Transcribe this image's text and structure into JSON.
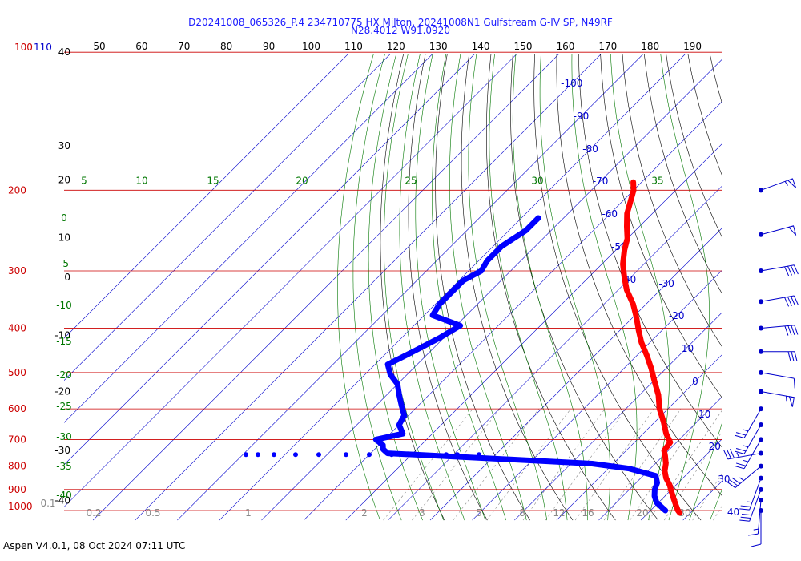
{
  "title_line1": "D20241008_065326_P.4 234710775 HX Milton, 20241008N1 Gulfstream G-IV SP, N49RF",
  "title_line2": "N28.4012 W91.0920",
  "footer": "Aspen V4.0.1, 08 Oct 2024  07:11 UTC",
  "colors": {
    "isobar": "#cc0000",
    "isotherm": "#0000cc",
    "dry_adiabat": "#000000",
    "moist_adiabat": "#007700",
    "mixing_ratio": "#888888",
    "temperature": "#ff0000",
    "dewpoint": "#0000ff",
    "wind": "#0000cc",
    "height_km": "#000000"
  },
  "chart_data": {
    "type": "skew-t log-p",
    "grid": true,
    "pressure_levels": [
      {
        "p": 100,
        "label": "100"
      },
      {
        "p": 110,
        "label": "110"
      },
      {
        "p": 200,
        "label": "200"
      },
      {
        "p": 300,
        "label": "300"
      },
      {
        "p": 400,
        "label": "400"
      },
      {
        "p": 500,
        "label": "500"
      },
      {
        "p": 600,
        "label": "600"
      },
      {
        "p": 700,
        "label": "700"
      },
      {
        "p": 800,
        "label": "800"
      },
      {
        "p": 900,
        "label": "900"
      },
      {
        "p": 1000,
        "label": "1000"
      }
    ],
    "isotherm_labels": [
      {
        "t": -100,
        "label": "-100"
      },
      {
        "t": -90,
        "label": "-90"
      },
      {
        "t": -80,
        "label": "-80"
      },
      {
        "t": -70,
        "label": "-70"
      },
      {
        "t": -60,
        "label": "-60"
      },
      {
        "t": -50,
        "label": "-50"
      },
      {
        "t": -40,
        "label": "-40"
      },
      {
        "t": -30,
        "label": "-30"
      },
      {
        "t": -20,
        "label": "-20"
      },
      {
        "t": -10,
        "label": "-10"
      },
      {
        "t": 0,
        "label": "0"
      },
      {
        "t": 10,
        "label": "10"
      },
      {
        "t": 20,
        "label": "20"
      },
      {
        "t": 30,
        "label": "30"
      },
      {
        "t": 40,
        "label": "40"
      }
    ],
    "dry_adiabat_top_labels": [
      "50",
      "60",
      "70",
      "80",
      "90",
      "100",
      "110",
      "120",
      "130",
      "140",
      "150",
      "160",
      "170",
      "180",
      "190"
    ],
    "moist_adiabat_labels_200": [
      {
        "theta_w": 5,
        "label": "5"
      },
      {
        "theta_w": 10,
        "label": "10"
      },
      {
        "theta_w": 15,
        "label": "15"
      },
      {
        "theta_w": 20,
        "label": "20"
      },
      {
        "theta_w": 25,
        "label": "25"
      },
      {
        "theta_w": 30,
        "label": "30"
      },
      {
        "theta_w": 35,
        "label": "35"
      }
    ],
    "moist_adiabat_labels_left": [
      "0",
      "-5",
      "-10",
      "-15",
      "-20",
      "-25",
      "-30",
      "-35",
      "-40"
    ],
    "mixing_ratio_labels": [
      {
        "w": 0.1,
        "label": "0.1"
      },
      {
        "w": 0.2,
        "label": "0.2"
      },
      {
        "w": 0.5,
        "label": "0.5"
      },
      {
        "w": 1,
        "label": "1"
      },
      {
        "w": 2,
        "label": "2"
      },
      {
        "w": 3,
        "label": "3"
      },
      {
        "w": 5,
        "label": "5"
      },
      {
        "w": 8,
        "label": "8"
      },
      {
        "w": 12,
        "label": "12"
      },
      {
        "w": 16,
        "label": "16"
      },
      {
        "w": 20,
        "label": "20"
      },
      {
        "w": 30,
        "label": "30"
      },
      {
        "w": 40,
        "label": "40"
      }
    ],
    "height_km_labels": [
      {
        "p": 100,
        "label": "40"
      },
      {
        "p": 160,
        "label": "30"
      },
      {
        "p": 190,
        "label": "20"
      },
      {
        "p": 254,
        "label": "10"
      },
      {
        "p": 310,
        "label": "0"
      },
      {
        "p": 415,
        "label": "-10"
      },
      {
        "p": 550,
        "label": "-20"
      },
      {
        "p": 740,
        "label": "-30"
      },
      {
        "p": 950,
        "label": "-40"
      }
    ],
    "temperature_profile": [
      {
        "p": 192,
        "t": -62
      },
      {
        "p": 200,
        "t": -60
      },
      {
        "p": 212,
        "t": -58
      },
      {
        "p": 225,
        "t": -56
      },
      {
        "p": 240,
        "t": -53
      },
      {
        "p": 255,
        "t": -50
      },
      {
        "p": 270,
        "t": -48
      },
      {
        "p": 290,
        "t": -45
      },
      {
        "p": 310,
        "t": -41.5
      },
      {
        "p": 330,
        "t": -38
      },
      {
        "p": 355,
        "t": -33
      },
      {
        "p": 380,
        "t": -29
      },
      {
        "p": 405,
        "t": -25.5
      },
      {
        "p": 430,
        "t": -22
      },
      {
        "p": 460,
        "t": -17.5
      },
      {
        "p": 490,
        "t": -13.5
      },
      {
        "p": 520,
        "t": -10
      },
      {
        "p": 560,
        "t": -5.5
      },
      {
        "p": 600,
        "t": -2
      },
      {
        "p": 640,
        "t": 2
      },
      {
        "p": 680,
        "t": 5.5
      },
      {
        "p": 710,
        "t": 8.5
      },
      {
        "p": 740,
        "t": 9
      },
      {
        "p": 760,
        "t": 10.5
      },
      {
        "p": 790,
        "t": 12.5
      },
      {
        "p": 820,
        "t": 14
      },
      {
        "p": 850,
        "t": 16
      },
      {
        "p": 880,
        "t": 18.5
      },
      {
        "p": 910,
        "t": 20.5
      },
      {
        "p": 940,
        "t": 22.5
      },
      {
        "p": 970,
        "t": 24.5
      },
      {
        "p": 1000,
        "t": 26.5
      },
      {
        "p": 1012,
        "t": 27.5
      }
    ],
    "dewpoint_profile": [
      {
        "p": 230,
        "td": -76
      },
      {
        "p": 245,
        "td": -76
      },
      {
        "p": 265,
        "td": -78
      },
      {
        "p": 285,
        "td": -78
      },
      {
        "p": 300,
        "td": -77
      },
      {
        "p": 315,
        "td": -79
      },
      {
        "p": 335,
        "td": -79
      },
      {
        "p": 355,
        "td": -79
      },
      {
        "p": 375,
        "td": -78
      },
      {
        "p": 395,
        "td": -69
      },
      {
        "p": 420,
        "td": -71
      },
      {
        "p": 450,
        "td": -74
      },
      {
        "p": 480,
        "td": -77
      },
      {
        "p": 505,
        "td": -74
      },
      {
        "p": 530,
        "td": -70
      },
      {
        "p": 560,
        "td": -67
      },
      {
        "p": 590,
        "td": -64
      },
      {
        "p": 620,
        "td": -61
      },
      {
        "p": 650,
        "td": -60
      },
      {
        "p": 680,
        "td": -57
      },
      {
        "p": 700,
        "td": -62
      },
      {
        "p": 720,
        "td": -59
      },
      {
        "p": 735,
        "td": -58
      },
      {
        "p": 750,
        "td": -56
      },
      {
        "p": 770,
        "td": -30
      },
      {
        "p": 790,
        "td": -5
      },
      {
        "p": 810,
        "td": 5
      },
      {
        "p": 840,
        "td": 13
      },
      {
        "p": 870,
        "td": 15
      },
      {
        "p": 900,
        "td": 16
      },
      {
        "p": 930,
        "td": 17.5
      },
      {
        "p": 960,
        "td": 19.5
      },
      {
        "p": 985,
        "td": 22
      },
      {
        "p": 1000,
        "td": 23.5
      }
    ],
    "wind_barbs": [
      {
        "p": 200,
        "dir_deg": 70,
        "speed_kt": 55
      },
      {
        "p": 250,
        "dir_deg": 75,
        "speed_kt": 50
      },
      {
        "p": 300,
        "dir_deg": 80,
        "speed_kt": 40
      },
      {
        "p": 350,
        "dir_deg": 80,
        "speed_kt": 40
      },
      {
        "p": 400,
        "dir_deg": 85,
        "speed_kt": 40
      },
      {
        "p": 450,
        "dir_deg": 90,
        "speed_kt": 30
      },
      {
        "p": 500,
        "dir_deg": 100,
        "speed_kt": 10
      },
      {
        "p": 550,
        "dir_deg": 100,
        "speed_kt": 55
      },
      {
        "p": 600,
        "dir_deg": 210,
        "speed_kt": 25
      },
      {
        "p": 650,
        "dir_deg": 210,
        "speed_kt": 25
      },
      {
        "p": 700,
        "dir_deg": 210,
        "speed_kt": 25
      },
      {
        "p": 750,
        "dir_deg": 260,
        "speed_kt": 35
      },
      {
        "p": 800,
        "dir_deg": 230,
        "speed_kt": 35
      },
      {
        "p": 850,
        "dir_deg": 200,
        "speed_kt": 25
      },
      {
        "p": 900,
        "dir_deg": 200,
        "speed_kt": 30
      },
      {
        "p": 950,
        "dir_deg": 185,
        "speed_kt": 15
      },
      {
        "p": 1000,
        "dir_deg": 180,
        "speed_kt": 10
      }
    ]
  }
}
